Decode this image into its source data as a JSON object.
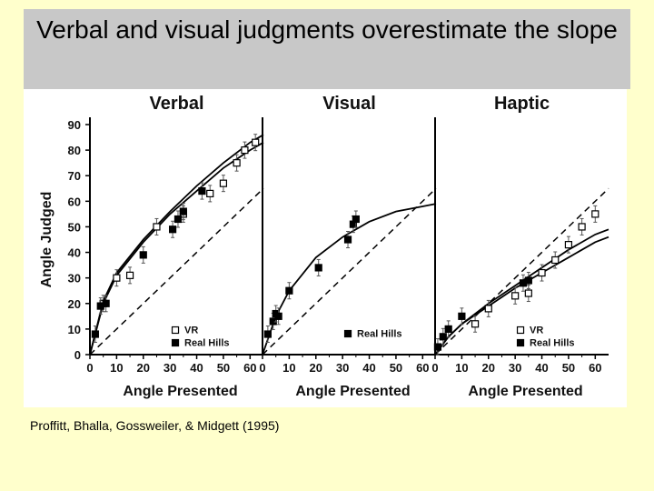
{
  "slide": {
    "title": "Verbal and visual judgments overestimate the slope",
    "citation": "Proffitt, Bhalla, Gossweiler, & Midgett (1995)"
  },
  "chart_data": [
    {
      "type": "scatter",
      "title": "Verbal",
      "xlabel": "Angle Presented",
      "ylabel": "Angle Judged",
      "xlim": [
        0,
        65
      ],
      "ylim": [
        0,
        90
      ],
      "xticks": [
        "0",
        "10",
        "20",
        "30",
        "40",
        "50",
        "60"
      ],
      "yticks": [
        "0",
        "10",
        "20",
        "30",
        "40",
        "50",
        "60",
        "70",
        "80",
        "90"
      ],
      "legend": [
        "VR",
        "Real Hills"
      ],
      "legend_position": "bottom-right",
      "series": [
        {
          "name": "VR",
          "marker": "open-square",
          "points": [
            [
              5,
              20
            ],
            [
              10,
              30
            ],
            [
              15,
              31
            ],
            [
              25,
              50
            ],
            [
              35,
              55
            ],
            [
              45,
              63
            ],
            [
              50,
              67
            ],
            [
              55,
              75
            ],
            [
              58,
              80
            ],
            [
              62,
              83
            ]
          ]
        },
        {
          "name": "Real Hills",
          "marker": "filled-square",
          "points": [
            [
              2,
              8
            ],
            [
              4,
              19
            ],
            [
              6,
              20
            ],
            [
              20,
              39
            ],
            [
              31,
              49
            ],
            [
              33,
              53
            ],
            [
              35,
              56
            ],
            [
              42,
              64
            ]
          ]
        }
      ],
      "fits": [
        {
          "points": [
            [
              0,
              0
            ],
            [
              5,
              20
            ],
            [
              10,
              31
            ],
            [
              20,
              44
            ],
            [
              30,
              55
            ],
            [
              40,
              64
            ],
            [
              50,
              73
            ],
            [
              60,
              80
            ],
            [
              65,
              83
            ]
          ]
        },
        {
          "points": [
            [
              0,
              0
            ],
            [
              5,
              21
            ],
            [
              10,
              32
            ],
            [
              20,
              45
            ],
            [
              30,
              56
            ],
            [
              40,
              66
            ],
            [
              50,
              75
            ],
            [
              60,
              83
            ],
            [
              65,
              86
            ]
          ]
        }
      ],
      "unity_line": [
        [
          0,
          0
        ],
        [
          65,
          65
        ]
      ]
    },
    {
      "type": "scatter",
      "title": "Visual",
      "xlabel": "Angle Presented",
      "ylabel": "",
      "xlim": [
        0,
        65
      ],
      "ylim": [
        0,
        90
      ],
      "xticks": [
        "0",
        "10",
        "20",
        "30",
        "40",
        "50",
        "60"
      ],
      "legend": [
        "Real Hills"
      ],
      "legend_position": "bottom-right",
      "series": [
        {
          "name": "Real Hills",
          "marker": "filled-square",
          "points": [
            [
              2,
              8
            ],
            [
              4,
              13
            ],
            [
              5,
              16
            ],
            [
              6,
              15
            ],
            [
              10,
              25
            ],
            [
              21,
              34
            ],
            [
              32,
              45
            ],
            [
              34,
              51
            ],
            [
              35,
              53
            ]
          ]
        }
      ],
      "fits": [
        {
          "points": [
            [
              0,
              0
            ],
            [
              5,
              15
            ],
            [
              10,
              25
            ],
            [
              20,
              38
            ],
            [
              30,
              46
            ],
            [
              40,
              52
            ],
            [
              50,
              56
            ],
            [
              60,
              58
            ],
            [
              65,
              59
            ]
          ]
        }
      ],
      "unity_line": [
        [
          0,
          0
        ],
        [
          65,
          65
        ]
      ]
    },
    {
      "type": "scatter",
      "title": "Haptic",
      "xlabel": "Angle Presented",
      "ylabel": "",
      "xlim": [
        0,
        65
      ],
      "ylim": [
        0,
        90
      ],
      "xticks": [
        "0",
        "10",
        "20",
        "30",
        "40",
        "50",
        "60"
      ],
      "legend": [
        "VR",
        "Real Hills"
      ],
      "legend_position": "bottom-right",
      "series": [
        {
          "name": "VR",
          "marker": "open-square",
          "points": [
            [
              15,
              12
            ],
            [
              20,
              18
            ],
            [
              30,
              23
            ],
            [
              35,
              24
            ],
            [
              40,
              32
            ],
            [
              45,
              37
            ],
            [
              50,
              43
            ],
            [
              55,
              50
            ],
            [
              60,
              55
            ]
          ]
        },
        {
          "name": "Real Hills",
          "marker": "filled-square",
          "points": [
            [
              1,
              3
            ],
            [
              3,
              7
            ],
            [
              5,
              10
            ],
            [
              10,
              15
            ],
            [
              33,
              28
            ],
            [
              35,
              29
            ]
          ]
        }
      ],
      "fits": [
        {
          "points": [
            [
              0,
              0
            ],
            [
              5,
              7
            ],
            [
              10,
              12
            ],
            [
              20,
              20
            ],
            [
              30,
              27
            ],
            [
              40,
              34
            ],
            [
              50,
              41
            ],
            [
              60,
              47
            ],
            [
              65,
              49
            ]
          ]
        },
        {
          "points": [
            [
              0,
              0
            ],
            [
              5,
              7
            ],
            [
              10,
              12
            ],
            [
              20,
              19
            ],
            [
              30,
              26
            ],
            [
              40,
              32
            ],
            [
              50,
              38
            ],
            [
              60,
              44
            ],
            [
              65,
              46
            ]
          ]
        }
      ],
      "unity_line": [
        [
          0,
          0
        ],
        [
          65,
          65
        ]
      ]
    }
  ]
}
